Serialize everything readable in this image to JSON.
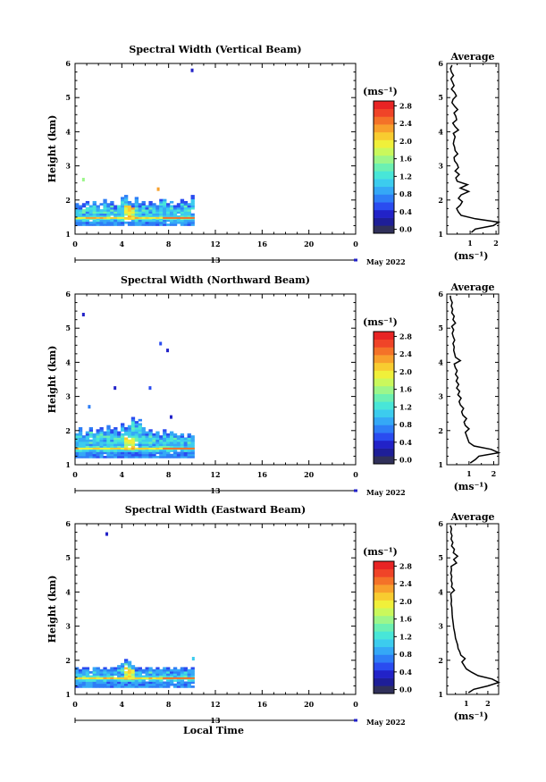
{
  "colors": {
    "colorbar": [
      "#30305a",
      "#1e1e98",
      "#2222c8",
      "#2a4cf0",
      "#2e7ef6",
      "#35a8f6",
      "#3cccee",
      "#48e6d8",
      "#6cf0b2",
      "#9cf68a",
      "#caf85c",
      "#f0f03a",
      "#f8cc30",
      "#f8a02c",
      "#f47228",
      "#f04428",
      "#e82424"
    ]
  },
  "chart_data": [
    {
      "type": "heatmap",
      "title": "Spectral Width (Vertical Beam)",
      "ylabel": "Height (km)",
      "xlabel": "",
      "x_ticks": [
        "0",
        "4",
        "8",
        "12",
        "16",
        "20",
        "0"
      ],
      "y_ticks": [
        "1",
        "2",
        "3",
        "4",
        "5",
        "6"
      ],
      "xlim": [
        0,
        24
      ],
      "ylim": [
        1,
        6
      ],
      "day_label": "13",
      "month_label": "May 2022",
      "colorbar": {
        "unit": "(ms⁻¹)",
        "ticks": [
          "2.8",
          "2.4",
          "2.0",
          "1.6",
          "1.2",
          "0.8",
          "0.4",
          "0.0"
        ],
        "range": [
          0.0,
          3.0
        ]
      },
      "layer": {
        "x_start": 0.0,
        "x_end": 10.2,
        "base_km": 1.25
      },
      "top_heights": [
        1.9,
        1.85,
        1.9,
        1.95,
        1.9,
        1.95,
        1.85,
        1.9,
        2.0,
        1.9,
        1.95,
        1.85,
        2.0,
        2.05,
        2.1,
        1.95,
        1.9,
        2.05,
        1.9,
        1.95,
        1.85,
        1.95,
        1.9,
        1.85,
        2.0,
        2.05,
        1.9,
        1.95,
        1.85,
        1.9,
        2.0,
        1.95,
        1.9,
        2.1
      ],
      "scatter": [
        {
          "x": 0.6,
          "y": 2.6,
          "v": 1.6
        },
        {
          "x": 7.0,
          "y": 2.32,
          "v": 2.4
        },
        {
          "x": 9.9,
          "y": 5.8,
          "v": 0.4
        }
      ],
      "avg_profile": {
        "title": "Average",
        "xlabel": "(ms⁻¹)",
        "x_ticks": [
          "1",
          "2"
        ],
        "xlim": [
          0.1,
          2.1
        ],
        "heights": [
          1.05,
          1.15,
          1.25,
          1.35,
          1.45,
          1.55,
          1.65,
          1.75,
          1.85,
          1.95,
          2.05,
          2.15,
          2.25,
          2.35,
          2.45,
          2.55,
          2.65,
          2.75,
          2.85,
          2.95,
          3.05,
          3.15,
          3.25,
          3.35,
          3.45,
          3.55,
          3.65,
          3.75,
          3.85,
          3.95,
          4.05,
          4.15,
          4.25,
          4.35,
          4.45,
          4.55,
          4.65,
          4.75,
          4.85,
          4.95,
          5.05,
          5.15,
          5.25,
          5.35,
          5.45,
          5.55,
          5.65,
          5.75,
          5.85,
          5.95
        ],
        "values": [
          1.05,
          1.2,
          1.9,
          2.1,
          1.2,
          0.65,
          0.55,
          0.48,
          0.62,
          0.7,
          0.55,
          0.65,
          0.95,
          0.62,
          0.9,
          0.5,
          0.45,
          0.58,
          0.42,
          0.55,
          0.5,
          0.4,
          0.38,
          0.52,
          0.42,
          0.4,
          0.35,
          0.38,
          0.42,
          0.35,
          0.55,
          0.42,
          0.33,
          0.48,
          0.45,
          0.38,
          0.52,
          0.4,
          0.3,
          0.34,
          0.47,
          0.4,
          0.28,
          0.38,
          0.32,
          0.26,
          0.36,
          0.28,
          0.24,
          0.3
        ]
      }
    },
    {
      "type": "heatmap",
      "title": "Spectral Width (Northward Beam)",
      "ylabel": "Height (km)",
      "xlabel": "",
      "x_ticks": [
        "0",
        "4",
        "8",
        "12",
        "16",
        "20",
        "0"
      ],
      "y_ticks": [
        "1",
        "2",
        "3",
        "4",
        "5",
        "6"
      ],
      "xlim": [
        0,
        24
      ],
      "ylim": [
        1,
        6
      ],
      "day_label": "13",
      "month_label": "May 2022",
      "colorbar": {
        "unit": "(ms⁻¹)",
        "ticks": [
          "2.8",
          "2.4",
          "2.0",
          "1.6",
          "1.2",
          "0.8",
          "0.4",
          "0.0"
        ],
        "range": [
          0.0,
          3.0
        ]
      },
      "layer": {
        "x_start": 0.0,
        "x_end": 10.2,
        "base_km": 1.2
      },
      "top_heights": [
        1.95,
        2.05,
        1.85,
        1.95,
        2.1,
        1.9,
        2.0,
        2.05,
        1.95,
        2.15,
        2.0,
        2.1,
        1.95,
        2.2,
        2.05,
        2.15,
        2.4,
        2.25,
        2.3,
        2.1,
        1.95,
        2.0,
        1.9,
        1.95,
        1.85,
        2.0,
        1.9,
        1.95,
        1.9,
        1.85,
        1.9,
        1.85,
        1.9,
        1.85
      ],
      "scatter": [
        {
          "x": 0.6,
          "y": 5.4,
          "v": 0.4
        },
        {
          "x": 1.1,
          "y": 2.7,
          "v": 0.8
        },
        {
          "x": 3.3,
          "y": 3.25,
          "v": 0.4
        },
        {
          "x": 6.3,
          "y": 3.25,
          "v": 0.6
        },
        {
          "x": 7.2,
          "y": 4.55,
          "v": 0.6
        },
        {
          "x": 7.8,
          "y": 4.35,
          "v": 0.4
        },
        {
          "x": 8.1,
          "y": 2.4,
          "v": 0.4
        }
      ],
      "avg_profile": {
        "title": "Average",
        "xlabel": "(ms⁻¹)",
        "x_ticks": [
          "1",
          "2"
        ],
        "xlim": [
          0.1,
          2.2
        ],
        "heights": [
          1.05,
          1.15,
          1.25,
          1.35,
          1.45,
          1.55,
          1.65,
          1.75,
          1.85,
          1.95,
          2.05,
          2.15,
          2.25,
          2.35,
          2.45,
          2.55,
          2.65,
          2.75,
          2.85,
          2.95,
          3.05,
          3.15,
          3.25,
          3.35,
          3.45,
          3.55,
          3.65,
          3.75,
          3.85,
          3.95,
          4.05,
          4.15,
          4.25,
          4.35,
          4.45,
          4.55,
          4.65,
          4.75,
          4.85,
          4.95,
          5.05,
          5.15,
          5.25,
          5.35,
          5.45,
          5.55,
          5.65,
          5.75,
          5.85,
          5.95
        ],
        "values": [
          1.05,
          1.25,
          1.4,
          2.2,
          1.9,
          1.2,
          1.0,
          0.95,
          0.9,
          0.85,
          1.0,
          0.85,
          0.8,
          0.9,
          0.75,
          0.7,
          0.78,
          0.65,
          0.6,
          0.68,
          0.55,
          0.62,
          0.5,
          0.58,
          0.48,
          0.55,
          0.45,
          0.52,
          0.44,
          0.4,
          0.65,
          0.45,
          0.42,
          0.38,
          0.4,
          0.35,
          0.42,
          0.36,
          0.32,
          0.38,
          0.3,
          0.45,
          0.35,
          0.4,
          0.3,
          0.34,
          0.28,
          0.32,
          0.26,
          0.24
        ]
      }
    },
    {
      "type": "heatmap",
      "title": "Spectral Width (Eastward Beam)",
      "ylabel": "Height (km)",
      "xlabel": "Local Time",
      "x_ticks": [
        "0",
        "4",
        "8",
        "12",
        "16",
        "20",
        "0"
      ],
      "y_ticks": [
        "1",
        "2",
        "3",
        "4",
        "5",
        "6"
      ],
      "xlim": [
        0,
        24
      ],
      "ylim": [
        1,
        6
      ],
      "day_label": "13",
      "month_label": "May 2022",
      "colorbar": {
        "unit": "(ms⁻¹)",
        "ticks": [
          "2.8",
          "2.4",
          "2.0",
          "1.6",
          "1.2",
          "0.8",
          "0.4",
          "0.0"
        ],
        "range": [
          0.0,
          3.0
        ]
      },
      "layer": {
        "x_start": 0.0,
        "x_end": 10.2,
        "base_km": 1.2
      },
      "top_heights": [
        1.75,
        1.7,
        1.8,
        1.75,
        1.7,
        1.75,
        1.8,
        1.72,
        1.75,
        1.7,
        1.8,
        1.75,
        1.85,
        1.9,
        2.0,
        1.95,
        1.85,
        1.8,
        1.75,
        1.7,
        1.8,
        1.75,
        1.7,
        1.78,
        1.72,
        1.75,
        1.8,
        1.7,
        1.75,
        1.72,
        1.8,
        1.75,
        1.7,
        1.75
      ],
      "scatter": [
        {
          "x": 2.6,
          "y": 5.7,
          "v": 0.4
        },
        {
          "x": 10.0,
          "y": 2.05,
          "v": 1.2
        }
      ],
      "avg_profile": {
        "title": "Average",
        "xlabel": "(ms⁻¹)",
        "x_ticks": [
          "1",
          "2"
        ],
        "xlim": [
          0.1,
          2.5
        ],
        "heights": [
          1.05,
          1.15,
          1.25,
          1.35,
          1.45,
          1.55,
          1.65,
          1.75,
          1.85,
          1.95,
          2.05,
          2.15,
          2.25,
          2.35,
          2.45,
          2.55,
          2.65,
          2.75,
          2.85,
          2.95,
          3.05,
          3.15,
          3.25,
          3.35,
          3.45,
          3.55,
          3.65,
          3.75,
          3.85,
          3.95,
          4.05,
          4.15,
          4.25,
          4.35,
          4.45,
          4.55,
          4.65,
          4.75,
          4.85,
          4.95,
          5.05,
          5.15,
          5.25,
          5.35,
          5.45,
          5.55,
          5.65,
          5.75,
          5.85,
          5.95
        ],
        "values": [
          1.1,
          1.35,
          2.0,
          2.5,
          2.2,
          1.55,
          1.25,
          1.0,
          0.9,
          0.8,
          0.95,
          0.75,
          0.7,
          0.62,
          0.6,
          0.55,
          0.5,
          0.48,
          0.45,
          0.42,
          0.4,
          0.38,
          0.36,
          0.35,
          0.34,
          0.33,
          0.3,
          0.32,
          0.3,
          0.28,
          0.45,
          0.32,
          0.35,
          0.3,
          0.33,
          0.28,
          0.32,
          0.3,
          0.55,
          0.42,
          0.6,
          0.4,
          0.45,
          0.32,
          0.38,
          0.3,
          0.34,
          0.28,
          0.32,
          0.26
        ]
      }
    }
  ]
}
